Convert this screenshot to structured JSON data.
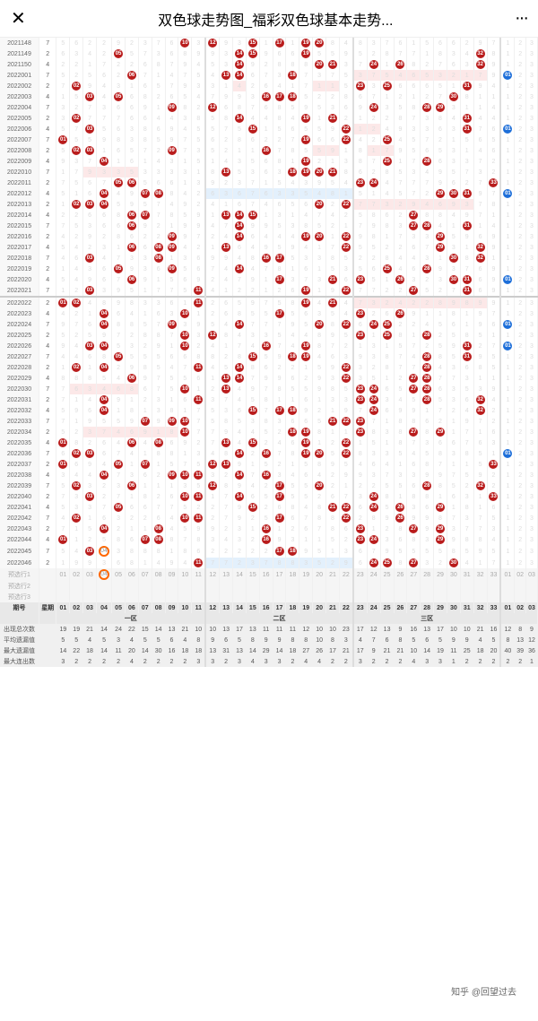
{
  "header": {
    "title": "双色球走势图_福彩双色球基本走势..."
  },
  "columns": {
    "period_label": "期号",
    "week_label": "星期",
    "zone1": "一区",
    "zone2": "二区",
    "zone3": "三区"
  },
  "predict_labels": [
    "预选行1",
    "预选行2",
    "预选行3"
  ],
  "summary_labels": [
    "出现总次数",
    "平均遗漏值",
    "最大遗漏值",
    "最大连出数"
  ],
  "footer_nums": [
    "01",
    "02",
    "03",
    "04",
    "05",
    "06",
    "07",
    "08",
    "09",
    "10",
    "11",
    "12",
    "13",
    "14",
    "15",
    "16",
    "17",
    "18",
    "19",
    "20",
    "21",
    "22",
    "23",
    "24",
    "25",
    "26",
    "27",
    "28",
    "29",
    "30",
    "31",
    "32",
    "33",
    "01",
    "02",
    "03"
  ],
  "summary_data": {
    "appear": [
      "19",
      "19",
      "21",
      "14",
      "24",
      "22",
      "15",
      "14",
      "13",
      "21",
      "10",
      "10",
      "13",
      "17",
      "13",
      "11",
      "11",
      "11",
      "12",
      "10",
      "10",
      "23",
      "17",
      "12",
      "13",
      "9",
      "16",
      "13",
      "17",
      "10",
      "10",
      "21",
      "16",
      "12",
      "8",
      "9"
    ],
    "avg_miss": [
      "5",
      "5",
      "4",
      "5",
      "3",
      "4",
      "5",
      "5",
      "6",
      "4",
      "8",
      "9",
      "6",
      "5",
      "8",
      "9",
      "9",
      "8",
      "8",
      "10",
      "8",
      "3",
      "4",
      "7",
      "6",
      "8",
      "5",
      "6",
      "5",
      "9",
      "9",
      "4",
      "5",
      "8",
      "13",
      "12"
    ],
    "max_miss": [
      "14",
      "22",
      "18",
      "14",
      "11",
      "20",
      "14",
      "30",
      "16",
      "18",
      "18",
      "13",
      "31",
      "13",
      "14",
      "29",
      "14",
      "18",
      "27",
      "26",
      "17",
      "21",
      "17",
      "9",
      "21",
      "21",
      "10",
      "14",
      "19",
      "11",
      "25",
      "18",
      "20",
      "40",
      "39",
      "36"
    ],
    "max_con": [
      "3",
      "2",
      "2",
      "2",
      "2",
      "4",
      "2",
      "2",
      "2",
      "2",
      "3",
      "3",
      "2",
      "3",
      "4",
      "3",
      "3",
      "2",
      "4",
      "4",
      "2",
      "2",
      "3",
      "2",
      "2",
      "2",
      "4",
      "3",
      "3",
      "1",
      "2",
      "2",
      "2",
      "2",
      "2",
      "1"
    ]
  },
  "rows": [
    {
      "p": "2021148",
      "w": "7",
      "b": {
        "10": 1,
        "12": 1,
        "15": 1,
        "17": 1,
        "19": 1,
        "20": 1
      },
      "bb": -1
    },
    {
      "p": "2021149",
      "w": "2",
      "b": {
        "05": 1,
        "14": 1,
        "15": 1,
        "19": 1,
        "32": 1
      },
      "bb": -1
    },
    {
      "p": "2021150",
      "w": "4",
      "b": {
        "14": 1,
        "20": 1,
        "21": 1,
        "24": 1,
        "26": 1,
        "32": 1
      },
      "bb": -1
    },
    {
      "p": "2022001",
      "w": "7",
      "b": {
        "06": 1,
        "13": 1,
        "14": 1,
        "18": 1
      },
      "bb": 33,
      "pk": [
        "23",
        "24",
        "25",
        "26",
        "27",
        "28",
        "29",
        "30",
        "31",
        "32"
      ]
    },
    {
      "p": "2022002",
      "w": "2",
      "b": {
        "02": 1,
        "23": 1,
        "25": 1,
        "31": 1
      },
      "bb": -1,
      "pk": [
        "14",
        "20",
        "21"
      ]
    },
    {
      "p": "2022003",
      "w": "4",
      "b": {
        "03": 1,
        "05": 1,
        "16": 1,
        "17": 1,
        "18": 1,
        "30": 1
      },
      "bb": -1
    },
    {
      "p": "2022004",
      "w": "7",
      "b": {
        "09": 1,
        "12": 1,
        "24": 1,
        "28": 1,
        "29": 1
      },
      "bb": -1
    },
    {
      "p": "2022005",
      "w": "2",
      "b": {
        "02": 1,
        "14": 1,
        "19": 1,
        "21": 1,
        "31": 1
      },
      "bb": -1
    },
    {
      "p": "2022006",
      "w": "4",
      "b": {
        "03": 1,
        "15": 1,
        "22": 1,
        "31": 1
      },
      "bb": 33,
      "pk": [
        "23",
        "24"
      ]
    },
    {
      "p": "2022007",
      "w": "7",
      "b": {
        "01": 1,
        "19": 1,
        "22": 1,
        "25": 1
      },
      "bb": -1
    },
    {
      "p": "2022008",
      "w": "2",
      "b": {
        "02": 1,
        "03": 1,
        "09": 1,
        "16": 1
      },
      "bb": -1,
      "pk": [
        "20",
        "21",
        "24",
        "25"
      ]
    },
    {
      "p": "2022009",
      "w": "4",
      "b": {
        "04": 1,
        "19": 1,
        "25": 1,
        "28": 1
      },
      "bb": -1
    },
    {
      "p": "2022010",
      "w": "7",
      "b": {
        "13": 1,
        "18": 1,
        "19": 1,
        "20": 1,
        "21": 1
      },
      "bb": -1,
      "pk": [
        "03",
        "04",
        "05",
        "06"
      ]
    },
    {
      "p": "2022011",
      "w": "2",
      "b": {
        "05": 1,
        "06": 1,
        "23": 1,
        "24": 1,
        "33": 1
      },
      "bb": -1
    },
    {
      "p": "2022012",
      "w": "4",
      "b": {
        "04": 1,
        "07": 1,
        "08": 1,
        "29": 1,
        "30": 1,
        "31": 1
      },
      "bb": 34,
      "bl": [
        "12",
        "13",
        "14",
        "15",
        "16",
        "17",
        "18",
        "19",
        "20",
        "21",
        "22"
      ]
    },
    {
      "p": "2022013",
      "w": "2",
      "b": {
        "02": 1,
        "03": 1,
        "04": 1,
        "20": 1,
        "22": 1
      },
      "bb": -1,
      "pk": [
        "23",
        "24",
        "25",
        "26",
        "27",
        "28",
        "29",
        "30",
        "31"
      ]
    },
    {
      "p": "2022014",
      "w": "4",
      "b": {
        "06": 1,
        "07": 1,
        "13": 1,
        "14": 1,
        "15": 1,
        "27": 1
      },
      "bb": -1
    },
    {
      "p": "2022015",
      "w": "7",
      "b": {
        "06": 1,
        "14": 1,
        "27": 1,
        "28": 1,
        "31": 1
      },
      "bb": -1
    },
    {
      "p": "2022016",
      "w": "2",
      "b": {
        "09": 1,
        "14": 1,
        "19": 1,
        "20": 1,
        "22": 1,
        "29": 1
      },
      "bb": -1
    },
    {
      "p": "2022017",
      "w": "4",
      "b": {
        "06": 1,
        "08": 1,
        "09": 1,
        "13": 1,
        "22": 1,
        "29": 1,
        "32": 1
      },
      "bb": -1
    },
    {
      "p": "2022018",
      "w": "7",
      "b": {
        "03": 1,
        "08": 1,
        "16": 1,
        "17": 1,
        "30": 1,
        "32": 1
      },
      "bb": -1
    },
    {
      "p": "2022019",
      "w": "2",
      "b": {
        "05": 1,
        "09": 1,
        "14": 1,
        "25": 1,
        "28": 1
      },
      "bb": -1
    },
    {
      "p": "2022020",
      "w": "4",
      "b": {
        "06": 1,
        "17": 1,
        "21": 1,
        "23": 1,
        "26": 1,
        "30": 1,
        "31": 1
      },
      "bb": 34
    },
    {
      "p": "2022021",
      "w": "7",
      "b": {
        "03": 1,
        "11": 1,
        "19": 1,
        "22": 1,
        "27": 1,
        "31": 1
      },
      "bb": -1
    },
    {
      "p": "2022022",
      "w": "2",
      "b": {
        "01": 1,
        "02": 1,
        "11": 1,
        "19": 1,
        "21": 1
      },
      "bb": -1,
      "pk": [
        "23",
        "24",
        "25",
        "26",
        "27",
        "28",
        "29",
        "30",
        "31",
        "32"
      ],
      "sec": 1
    },
    {
      "p": "2022023",
      "w": "4",
      "b": {
        "04": 1,
        "10": 1,
        "17": 1,
        "23": 1,
        "26": 1
      },
      "bb": -1
    },
    {
      "p": "2022024",
      "w": "7",
      "b": {
        "04": 1,
        "09": 1,
        "14": 1,
        "20": 1,
        "22": 1,
        "24": 1,
        "25": 1
      },
      "bb": 33
    },
    {
      "p": "2022025",
      "w": "2",
      "b": {
        "10": 1,
        "12": 1,
        "23": 1,
        "25": 1,
        "28": 1
      },
      "bb": -1
    },
    {
      "p": "2022026",
      "w": "4",
      "b": {
        "03": 1,
        "04": 1,
        "10": 1,
        "16": 1,
        "19": 1,
        "31": 1
      },
      "bb": 33
    },
    {
      "p": "2022027",
      "w": "7",
      "b": {
        "05": 1,
        "15": 1,
        "18": 1,
        "19": 1,
        "28": 1,
        "31": 1
      },
      "bb": -1
    },
    {
      "p": "2022028",
      "w": "2",
      "b": {
        "02": 1,
        "04": 1,
        "11": 1,
        "14": 1,
        "22": 1,
        "28": 1
      },
      "bb": -1
    },
    {
      "p": "2022029",
      "w": "4",
      "b": {
        "06": 1,
        "13": 1,
        "14": 1,
        "22": 1,
        "27": 1,
        "28": 1
      },
      "bb": -1
    },
    {
      "p": "2022030",
      "w": "7",
      "b": {
        "10": 1,
        "13": 1,
        "23": 1,
        "24": 1,
        "27": 1,
        "28": 1
      },
      "bb": -1,
      "pk": [
        "02",
        "03",
        "04",
        "05",
        "06"
      ]
    },
    {
      "p": "2022031",
      "w": "2",
      "b": {
        "04": 1,
        "11": 1,
        "23": 1,
        "24": 1,
        "28": 1,
        "32": 1
      },
      "bb": -1
    },
    {
      "p": "2022032",
      "w": "4",
      "b": {
        "04": 1,
        "15": 1,
        "17": 1,
        "18": 1,
        "24": 1,
        "32": 1
      },
      "bb": -1
    },
    {
      "p": "2022033",
      "w": "7",
      "b": {
        "07": 1,
        "09": 1,
        "10": 1,
        "21": 1,
        "22": 1,
        "23": 1
      },
      "bb": -1
    },
    {
      "p": "2022034",
      "w": "2",
      "b": {
        "10": 1,
        "18": 1,
        "19": 1,
        "23": 1,
        "27": 1,
        "29": 1
      },
      "bb": -1,
      "pk": [
        "03",
        "04",
        "05",
        "06",
        "07",
        "08",
        "09"
      ]
    },
    {
      "p": "2022035",
      "w": "4",
      "b": {
        "01": 1,
        "06": 1,
        "08": 1,
        "13": 1,
        "15": 1,
        "19": 1,
        "22": 1
      },
      "bb": -1
    },
    {
      "p": "2022036",
      "w": "7",
      "b": {
        "02": 1,
        "03": 1,
        "14": 1,
        "16": 1,
        "19": 1,
        "20": 1,
        "22": 1
      },
      "bb": 33
    },
    {
      "p": "2022037",
      "w": "2",
      "b": {
        "01": 1,
        "05": 1,
        "07": 1,
        "12": 1,
        "13": 1,
        "33": 1
      },
      "bb": -1
    },
    {
      "p": "2022038",
      "w": "4",
      "b": {
        "04": 1,
        "09": 1,
        "10": 1,
        "11": 1,
        "14": 1,
        "16": 1
      },
      "bb": -1
    },
    {
      "p": "2022039",
      "w": "7",
      "b": {
        "02": 1,
        "06": 1,
        "12": 1,
        "17": 1,
        "20": 1,
        "28": 1,
        "32": 1
      },
      "bb": -1
    },
    {
      "p": "2022040",
      "w": "2",
      "b": {
        "03": 1,
        "10": 1,
        "11": 1,
        "14": 1,
        "17": 1,
        "24": 1,
        "33": 1
      },
      "bb": -1
    },
    {
      "p": "2022041",
      "w": "4",
      "b": {
        "05": 1,
        "15": 1,
        "21": 1,
        "22": 1,
        "24": 1,
        "26": 1,
        "29": 1
      },
      "bb": -1
    },
    {
      "p": "2022042",
      "w": "7",
      "b": {
        "02": 1,
        "10": 1,
        "11": 1,
        "17": 1,
        "22": 1,
        "26": 1
      },
      "bb": -1
    },
    {
      "p": "2022043",
      "w": "2",
      "b": {
        "04": 1,
        "08": 1,
        "16": 1,
        "23": 1,
        "27": 1,
        "29": 1
      },
      "bb": -1
    },
    {
      "p": "2022044",
      "w": "4",
      "b": {
        "01": 1,
        "07": 1,
        "08": 1,
        "16": 1,
        "23": 1,
        "24": 1,
        "29": 1
      },
      "bb": -1
    },
    {
      "p": "2022045",
      "w": "7",
      "b": {
        "03": 1,
        "17": 1,
        "18": 1
      },
      "bb": -1,
      "arrow": 1
    },
    {
      "p": "2022046",
      "w": "2",
      "b": {
        "11": 1,
        "24": 1,
        "25": 1,
        "27": 1,
        "30": 1
      },
      "bb": -1,
      "bl": [
        "12",
        "13",
        "14",
        "15",
        "16",
        "17",
        "18",
        "19",
        "20",
        "21",
        "22"
      ]
    }
  ],
  "watermark": "知乎 @回望过去",
  "colors": {
    "red_ball": "#b91c1c",
    "blue_ball": "#1e6fd9",
    "pink_bg": "#fce8e8",
    "blue_bg": "#e3f0fc"
  }
}
